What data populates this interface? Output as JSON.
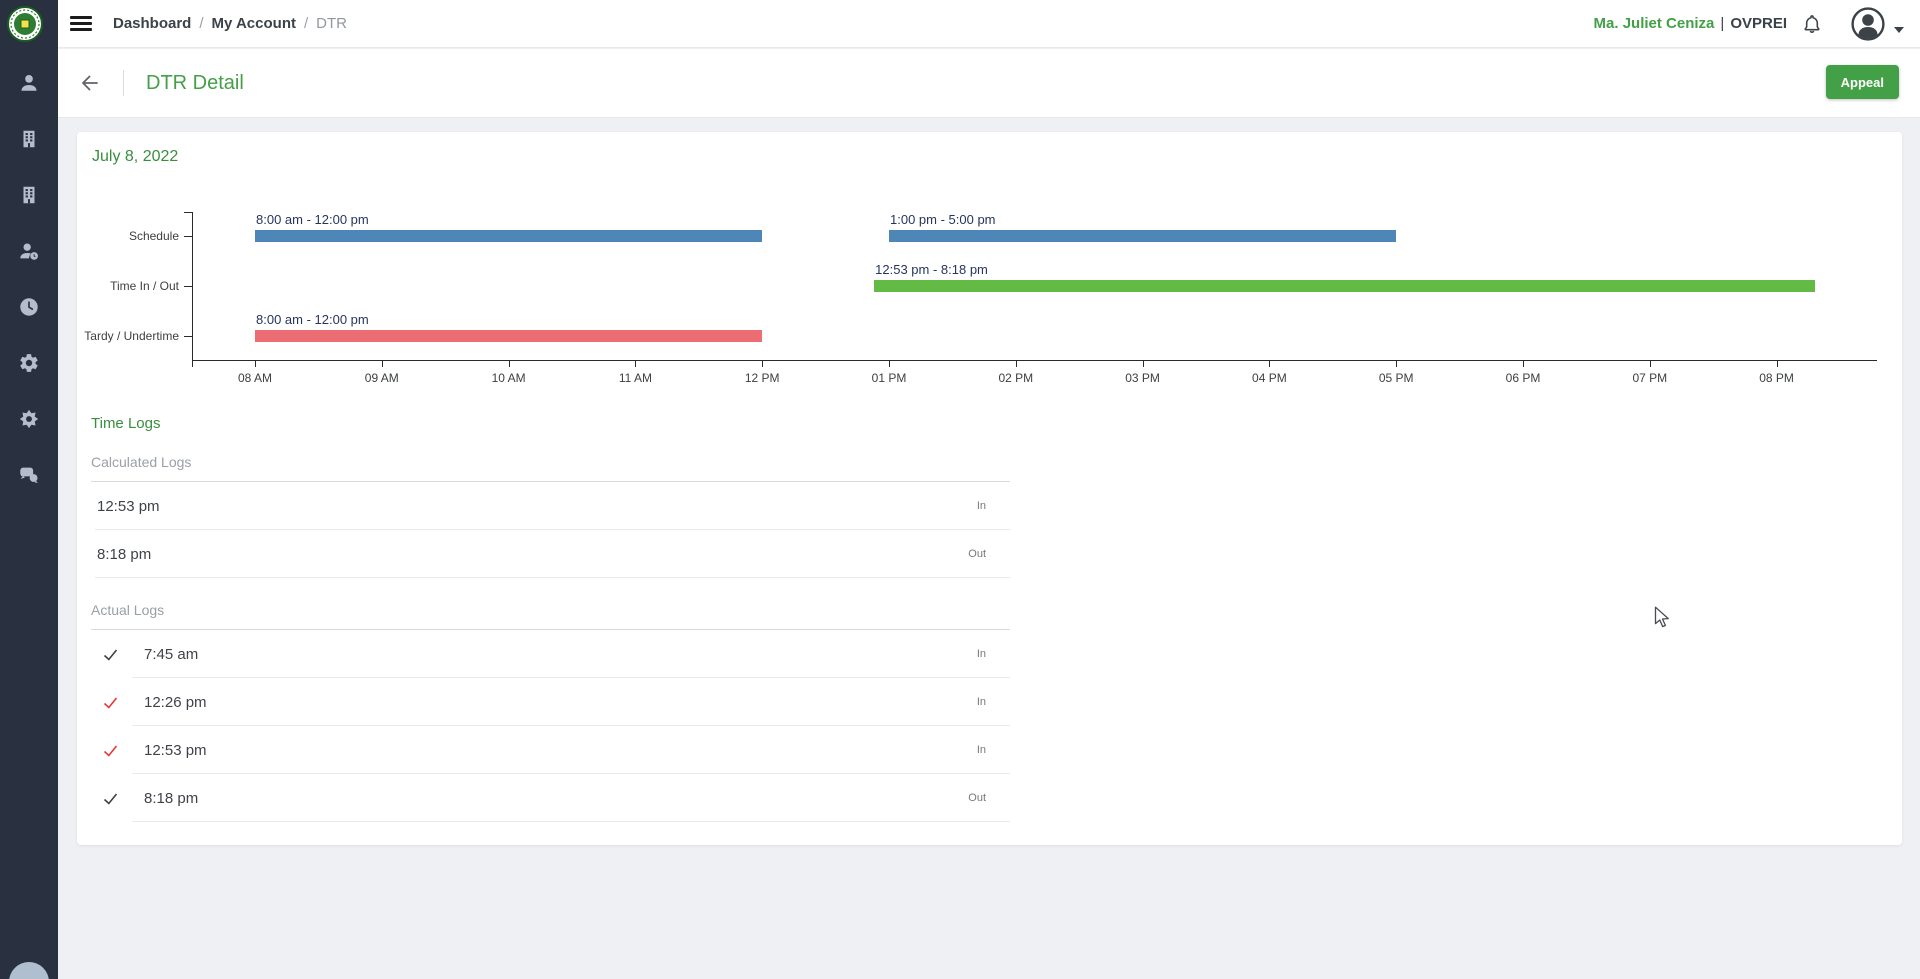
{
  "topbar": {
    "breadcrumb": [
      {
        "label": "Dashboard",
        "current": false
      },
      {
        "label": "My Account",
        "current": false
      },
      {
        "label": "DTR",
        "current": true
      }
    ],
    "separator": "/",
    "user_name": "Ma. Juliet Ceniza",
    "user_separator": "|",
    "user_unit": "OVPREI"
  },
  "page_header": {
    "title": "DTR Detail",
    "appeal_button": "Appeal"
  },
  "sidebar": {
    "icons": [
      "user",
      "building",
      "building-2",
      "user-badge",
      "clock",
      "gear",
      "cog",
      "chat"
    ]
  },
  "time_logs": {
    "section_title": "Time Logs",
    "calculated_title": "Calculated Logs",
    "actual_title": "Actual Logs",
    "calculated": [
      {
        "time": "12:53 pm",
        "direction": "In"
      },
      {
        "time": "8:18 pm",
        "direction": "Out"
      }
    ],
    "actual": [
      {
        "time": "7:45 am",
        "direction": "In",
        "check_color": "#3b4248"
      },
      {
        "time": "12:26 pm",
        "direction": "In",
        "check_color": "#e53935"
      },
      {
        "time": "12:53 pm",
        "direction": "In",
        "check_color": "#e53935"
      },
      {
        "time": "8:18 pm",
        "direction": "Out",
        "check_color": "#3b4248"
      }
    ]
  },
  "chart_data": {
    "type": "timeline",
    "title": "July 8, 2022",
    "rows": [
      {
        "label": "Schedule",
        "bars": [
          {
            "label": "8:00 am - 12:00 pm",
            "start_hour": 8,
            "end_hour": 12,
            "color": "#4e86b8"
          },
          {
            "label": "1:00 pm - 5:00 pm",
            "start_hour": 13,
            "end_hour": 17,
            "color": "#4e86b8"
          }
        ]
      },
      {
        "label": "Time In / Out",
        "bars": [
          {
            "label": "12:53 pm - 8:18 pm",
            "start_hour": 12.883,
            "end_hour": 20.3,
            "color": "#63bb46"
          }
        ]
      },
      {
        "label": "Tardy / Undertime",
        "bars": [
          {
            "label": "8:00 am - 12:00 pm",
            "start_hour": 8,
            "end_hour": 12,
            "color": "#ed6d75"
          }
        ]
      }
    ],
    "x_ticks": [
      "08 AM",
      "09 AM",
      "10 AM",
      "11 AM",
      "12 PM",
      "01 PM",
      "02 PM",
      "03 PM",
      "04 PM",
      "05 PM",
      "06 PM",
      "07 PM",
      "08 PM"
    ],
    "x_range_hours": [
      8,
      20
    ],
    "bar_label_color": "#26355e",
    "axis_color": "#2b2b2b"
  },
  "colors": {
    "accent_green": "#43a047",
    "heading_green": "#388e3c",
    "sidebar_bg": "#293040",
    "page_bg": "#eef0f4"
  }
}
